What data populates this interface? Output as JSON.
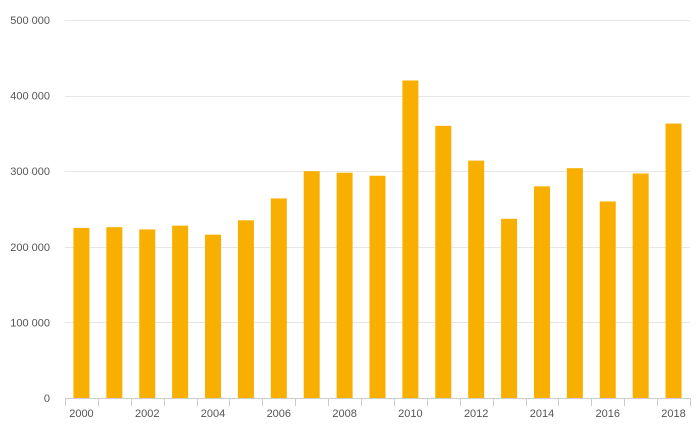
{
  "chart_data": {
    "type": "bar",
    "title": "",
    "xlabel": "",
    "ylabel": "",
    "categories": [
      "2000",
      "2001",
      "2002",
      "2003",
      "2004",
      "2005",
      "2006",
      "2007",
      "2008",
      "2009",
      "2010",
      "2011",
      "2012",
      "2013",
      "2014",
      "2015",
      "2016",
      "2017",
      "2018"
    ],
    "x_tick_labels": [
      "2000",
      "",
      "2002",
      "",
      "2004",
      "",
      "2006",
      "",
      "2008",
      "",
      "2010",
      "",
      "2012",
      "",
      "2014",
      "",
      "2016",
      "",
      "2018"
    ],
    "values": [
      225000,
      226000,
      223000,
      228000,
      216000,
      235000,
      264000,
      300000,
      298000,
      294000,
      420000,
      360000,
      314000,
      237000,
      280000,
      304000,
      260000,
      297000,
      363000
    ],
    "ylim": [
      0,
      500000
    ],
    "y_ticks": [
      0,
      100000,
      200000,
      300000,
      400000,
      500000
    ],
    "y_tick_labels": [
      "0",
      "100 000",
      "200 000",
      "300 000",
      "400 000",
      "500 000"
    ],
    "grid": true,
    "legend": "none",
    "bar_color": "#F9AF00"
  }
}
